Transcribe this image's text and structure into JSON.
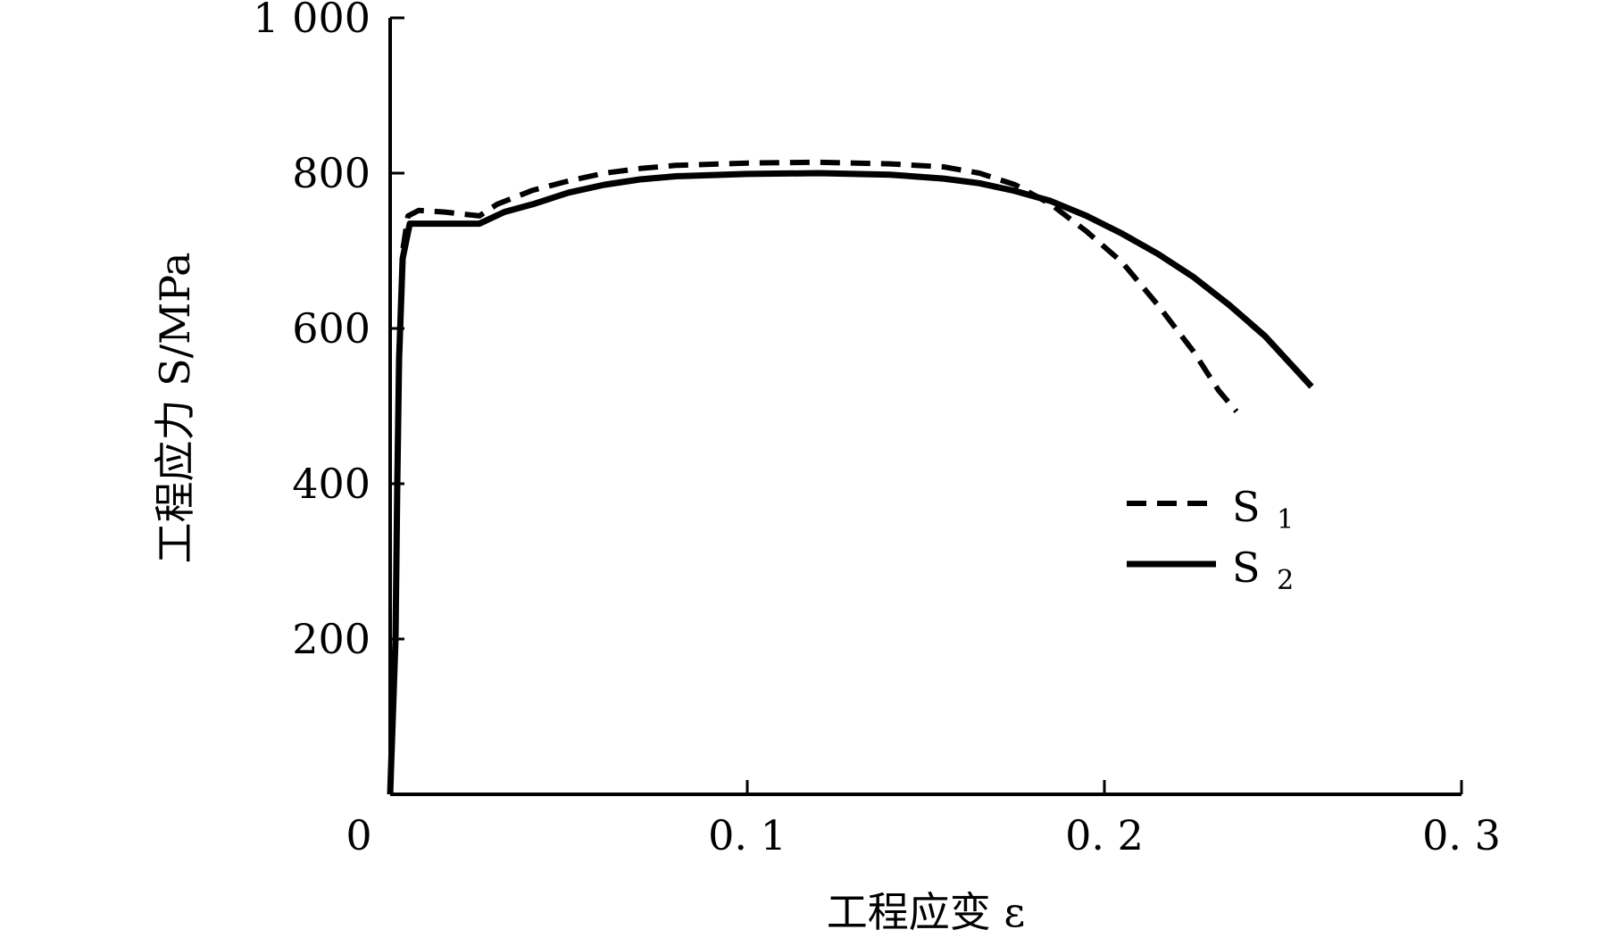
{
  "chart_data": {
    "type": "line",
    "title": "",
    "xlabel": "工程应变 ε",
    "ylabel": "工程应力 S/MPa",
    "xlim": [
      0,
      0.3
    ],
    "ylim": [
      0,
      1000
    ],
    "x_ticks": [
      {
        "value": 0,
        "label": "0"
      },
      {
        "value": 0.1,
        "label": "0. 1"
      },
      {
        "value": 0.2,
        "label": "0. 2"
      },
      {
        "value": 0.3,
        "label": "0. 3"
      }
    ],
    "y_ticks": [
      {
        "value": 200,
        "label": "200"
      },
      {
        "value": 400,
        "label": "400"
      },
      {
        "value": 600,
        "label": "600"
      },
      {
        "value": 800,
        "label": "800"
      },
      {
        "value": 1000,
        "label": "1 000"
      }
    ],
    "grid": false,
    "legend_position": "right",
    "series": [
      {
        "name": "S1",
        "legend_main": "S",
        "legend_sub": "1",
        "style": "dashed",
        "color": "#000000",
        "points": [
          [
            0.0,
            0
          ],
          [
            0.0015,
            200
          ],
          [
            0.002,
            400
          ],
          [
            0.0025,
            550
          ],
          [
            0.0035,
            700
          ],
          [
            0.005,
            745
          ],
          [
            0.008,
            752
          ],
          [
            0.015,
            750
          ],
          [
            0.025,
            745
          ],
          [
            0.03,
            760
          ],
          [
            0.04,
            778
          ],
          [
            0.05,
            790
          ],
          [
            0.06,
            800
          ],
          [
            0.07,
            806
          ],
          [
            0.08,
            810
          ],
          [
            0.1,
            813
          ],
          [
            0.12,
            814
          ],
          [
            0.14,
            812
          ],
          [
            0.155,
            808
          ],
          [
            0.165,
            800
          ],
          [
            0.175,
            785
          ],
          [
            0.185,
            760
          ],
          [
            0.195,
            725
          ],
          [
            0.205,
            685
          ],
          [
            0.215,
            630
          ],
          [
            0.225,
            570
          ],
          [
            0.232,
            520
          ],
          [
            0.237,
            493
          ]
        ]
      },
      {
        "name": "S2",
        "legend_main": "S",
        "legend_sub": "2",
        "style": "solid",
        "color": "#000000",
        "points": [
          [
            0.0,
            0
          ],
          [
            0.0015,
            200
          ],
          [
            0.002,
            400
          ],
          [
            0.0025,
            560
          ],
          [
            0.0035,
            690
          ],
          [
            0.0055,
            735
          ],
          [
            0.01,
            735
          ],
          [
            0.025,
            735
          ],
          [
            0.032,
            750
          ],
          [
            0.04,
            760
          ],
          [
            0.05,
            775
          ],
          [
            0.06,
            785
          ],
          [
            0.07,
            792
          ],
          [
            0.08,
            796
          ],
          [
            0.1,
            799
          ],
          [
            0.12,
            800
          ],
          [
            0.14,
            798
          ],
          [
            0.155,
            793
          ],
          [
            0.165,
            787
          ],
          [
            0.175,
            777
          ],
          [
            0.185,
            764
          ],
          [
            0.195,
            745
          ],
          [
            0.205,
            722
          ],
          [
            0.215,
            696
          ],
          [
            0.225,
            666
          ],
          [
            0.235,
            630
          ],
          [
            0.245,
            590
          ],
          [
            0.252,
            555
          ],
          [
            0.258,
            525
          ]
        ]
      }
    ]
  }
}
